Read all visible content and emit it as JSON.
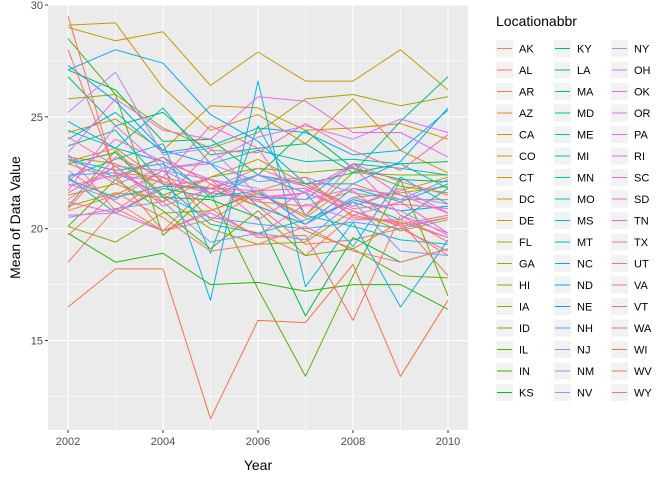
{
  "chart_data": {
    "type": "line",
    "xlabel": "Year",
    "ylabel": "Mean of Data Value",
    "xlim": [
      2002,
      2010
    ],
    "ylim": [
      11,
      30
    ],
    "x_ticks": [
      2002,
      2004,
      2006,
      2008,
      2010
    ],
    "y_ticks": [
      15,
      20,
      25,
      30
    ],
    "grid": true,
    "legend": {
      "title": "Locationabbr",
      "placement": "right",
      "columns": 3
    },
    "x": [
      2002,
      2003,
      2004,
      2005,
      2006,
      2007,
      2008,
      2009,
      2010
    ],
    "series": [
      {
        "name": "AK",
        "color": "#F8766D",
        "values": [
          22.6,
          21.2,
          19.9,
          22.0,
          21.0,
          19.3,
          19.5,
          20.0,
          19.0
        ]
      },
      {
        "name": "AL",
        "color": "#F47B5B",
        "values": [
          18.5,
          20.9,
          19.9,
          20.4,
          19.8,
          18.8,
          20.6,
          20.2,
          20.6
        ]
      },
      {
        "name": "AR",
        "color": "#EE8044",
        "values": [
          20.8,
          21.5,
          22.6,
          20.4,
          21.6,
          20.5,
          22.0,
          21.3,
          21.3
        ]
      },
      {
        "name": "AZ",
        "color": "#E7851E",
        "values": [
          23.0,
          23.6,
          22.1,
          21.6,
          21.3,
          19.9,
          19.1,
          20.3,
          19.6
        ]
      },
      {
        "name": "CA",
        "color": "#E08B00",
        "values": [
          21.5,
          22.0,
          21.2,
          22.3,
          23.1,
          22.0,
          21.0,
          21.7,
          22.3
        ]
      },
      {
        "name": "CO",
        "color": "#D89000",
        "values": [
          24.3,
          24.9,
          23.5,
          25.5,
          25.4,
          24.4,
          24.5,
          24.7,
          24.0
        ]
      },
      {
        "name": "CT",
        "color": "#CF9400",
        "values": [
          29.1,
          29.2,
          26.3,
          24.4,
          25.1,
          23.8,
          25.8,
          23.5,
          22.5
        ]
      },
      {
        "name": "DC",
        "color": "#C49A00",
        "values": [
          29.0,
          28.4,
          28.8,
          26.4,
          27.9,
          26.6,
          26.6,
          28.0,
          26.2
        ]
      },
      {
        "name": "DE",
        "color": "#B99E00",
        "values": [
          23.2,
          22.9,
          22.0,
          21.8,
          21.0,
          20.2,
          21.4,
          21.6,
          21.9
        ]
      },
      {
        "name": "FL",
        "color": "#ADA200",
        "values": [
          21.0,
          21.6,
          21.4,
          20.0,
          19.3,
          19.4,
          20.8,
          19.9,
          20.4
        ]
      },
      {
        "name": "GA",
        "color": "#A0A600",
        "values": [
          25.8,
          26.0,
          24.5,
          23.6,
          24.3,
          25.8,
          26.0,
          25.5,
          25.9
        ]
      },
      {
        "name": "HI",
        "color": "#91AA00",
        "values": [
          20.1,
          19.4,
          20.7,
          20.8,
          21.6,
          20.6,
          22.5,
          22.4,
          22.4
        ]
      },
      {
        "name": "IA",
        "color": "#7FAE00",
        "values": [
          21.0,
          23.5,
          21.5,
          22.3,
          22.7,
          22.5,
          22.7,
          21.9,
          21.6
        ]
      },
      {
        "name": "ID",
        "color": "#6BB100",
        "values": [
          20.1,
          22.2,
          20.8,
          19.1,
          20.8,
          18.8,
          19.1,
          17.9,
          17.8
        ]
      },
      {
        "name": "IL",
        "color": "#51B400",
        "values": [
          28.5,
          26.0,
          19.7,
          21.6,
          17.3,
          13.4,
          17.9,
          22.2,
          17.0
        ]
      },
      {
        "name": "IN",
        "color": "#24B700",
        "values": [
          19.8,
          18.5,
          18.9,
          17.5,
          17.6,
          17.2,
          17.5,
          17.5,
          16.4
        ]
      },
      {
        "name": "KS",
        "color": "#00BA38",
        "values": [
          22.9,
          23.4,
          21.4,
          21.3,
          20.5,
          16.1,
          19.6,
          18.5,
          19.1
        ]
      },
      {
        "name": "KY",
        "color": "#00BC59",
        "values": [
          27.1,
          26.2,
          23.9,
          24.0,
          22.4,
          24.4,
          22.7,
          22.2,
          22.1
        ]
      },
      {
        "name": "LA",
        "color": "#00BE70",
        "values": [
          26.8,
          24.6,
          25.2,
          23.3,
          23.6,
          23.8,
          22.5,
          22.9,
          23.0
        ]
      },
      {
        "name": "MA",
        "color": "#00BF83",
        "values": [
          22.3,
          20.7,
          21.8,
          21.4,
          22.4,
          22.0,
          22.5,
          24.8,
          26.8
        ]
      },
      {
        "name": "MD",
        "color": "#00C094",
        "values": [
          23.7,
          24.4,
          22.0,
          20.2,
          19.8,
          20.4,
          21.2,
          20.4,
          21.8
        ]
      },
      {
        "name": "ME",
        "color": "#00C1A4",
        "values": [
          24.4,
          23.6,
          25.4,
          22.9,
          23.5,
          23.0,
          23.1,
          22.9,
          21.8
        ]
      },
      {
        "name": "MI",
        "color": "#00C0B3",
        "values": [
          23.1,
          22.6,
          22.9,
          21.6,
          21.4,
          21.3,
          22.9,
          22.7,
          22.4
        ]
      },
      {
        "name": "MN",
        "color": "#00BFC0",
        "values": [
          23.1,
          22.3,
          23.2,
          21.4,
          21.7,
          20.2,
          21.8,
          21.2,
          22.0
        ]
      },
      {
        "name": "MO",
        "color": "#00BCCD",
        "values": [
          22.3,
          23.1,
          23.8,
          18.9,
          24.6,
          20.6,
          20.1,
          19.5,
          19.3
        ]
      },
      {
        "name": "MS",
        "color": "#00B8D9",
        "values": [
          22.2,
          21.4,
          21.9,
          21.8,
          22.4,
          21.6,
          19.2,
          22.3,
          21.1
        ]
      },
      {
        "name": "MT",
        "color": "#00B4E4",
        "values": [
          24.8,
          23.6,
          23.0,
          16.8,
          26.6,
          17.4,
          20.3,
          16.5,
          19.5
        ]
      },
      {
        "name": "NC",
        "color": "#00AEEF",
        "values": [
          24.0,
          25.2,
          23.4,
          23.7,
          24.5,
          24.3,
          23.3,
          23.5,
          25.3
        ]
      },
      {
        "name": "ND",
        "color": "#00A8FF",
        "values": [
          27.1,
          28.0,
          27.4,
          25.1,
          23.9,
          22.0,
          22.0,
          23.0,
          25.4
        ]
      },
      {
        "name": "NE",
        "color": "#00A2FF",
        "values": [
          27.3,
          25.7,
          23.5,
          22.9,
          21.0,
          20.2,
          21.3,
          20.8,
          21.0
        ]
      },
      {
        "name": "NH",
        "color": "#529EFF",
        "values": [
          22.4,
          22.5,
          21.5,
          20.5,
          20.2,
          20.0,
          20.3,
          20.0,
          20.5
        ]
      },
      {
        "name": "NJ",
        "color": "#7997FF",
        "values": [
          20.5,
          20.9,
          21.2,
          19.4,
          19.8,
          19.5,
          21.2,
          19.0,
          18.8
        ]
      },
      {
        "name": "NM",
        "color": "#9590FF",
        "values": [
          23.3,
          22.0,
          22.7,
          22.9,
          22.1,
          22.3,
          21.6,
          21.3,
          22.2
        ]
      },
      {
        "name": "NV",
        "color": "#AC88FF",
        "values": [
          22.0,
          21.3,
          22.6,
          22.2,
          21.8,
          20.2,
          21.4,
          20.8,
          19.7
        ]
      },
      {
        "name": "NY",
        "color": "#BF80FF",
        "values": [
          25.2,
          27.0,
          23.3,
          23.6,
          21.5,
          21.3,
          21.8,
          21.5,
          21.1
        ]
      },
      {
        "name": "OH",
        "color": "#CF78FF",
        "values": [
          21.3,
          22.8,
          22.6,
          21.6,
          22.4,
          21.9,
          21.0,
          21.8,
          20.7
        ]
      },
      {
        "name": "OK",
        "color": "#DC71FA",
        "values": [
          21.7,
          24.6,
          22.7,
          23.0,
          24.1,
          24.6,
          24.0,
          24.9,
          24.3
        ]
      },
      {
        "name": "OR",
        "color": "#E76BF3",
        "values": [
          20.6,
          20.7,
          19.9,
          20.7,
          19.7,
          21.1,
          20.4,
          20.4,
          19.6
        ]
      },
      {
        "name": "PA",
        "color": "#F066EA",
        "values": [
          23.4,
          25.8,
          24.4,
          24.0,
          25.9,
          25.7,
          24.3,
          24.3,
          23.2
        ]
      },
      {
        "name": "RI",
        "color": "#F763E0",
        "values": [
          22.1,
          24.0,
          23.0,
          22.2,
          20.4,
          21.7,
          22.9,
          21.5,
          20.7
        ]
      },
      {
        "name": "SC",
        "color": "#FC61D5",
        "values": [
          21.9,
          22.4,
          22.1,
          21.6,
          21.3,
          21.6,
          22.8,
          20.6,
          19.8
        ]
      },
      {
        "name": "SD",
        "color": "#FF61C9",
        "values": [
          21.2,
          20.7,
          21.9,
          22.2,
          21.4,
          21.6,
          20.8,
          20.1,
          20.5
        ]
      },
      {
        "name": "TN",
        "color": "#FF62BC",
        "values": [
          21.6,
          22.8,
          21.0,
          21.8,
          21.7,
          21.8,
          20.6,
          21.2,
          19.8
        ]
      },
      {
        "name": "TX",
        "color": "#FF65AE",
        "values": [
          20.9,
          23.2,
          22.3,
          24.6,
          23.6,
          20.6,
          22.9,
          22.1,
          21.5
        ]
      },
      {
        "name": "UT",
        "color": "#FF689F",
        "values": [
          24.1,
          22.8,
          21.2,
          23.5,
          23.4,
          24.7,
          23.5,
          22.6,
          24.2
        ]
      },
      {
        "name": "VA",
        "color": "#FF6C90",
        "values": [
          23.3,
          20.8,
          22.3,
          21.8,
          22.7,
          21.9,
          20.9,
          21.1,
          20.9
        ]
      },
      {
        "name": "VT",
        "color": "#FF6C7F",
        "values": [
          22.9,
          22.2,
          23.2,
          22.0,
          21.2,
          21.0,
          21.7,
          20.1,
          18.8
        ]
      },
      {
        "name": "WA",
        "color": "#FD6F6B",
        "values": [
          28.0,
          22.5,
          22.3,
          20.9,
          19.6,
          19.7,
          15.9,
          20.6,
          19.4
        ]
      },
      {
        "name": "WI",
        "color": "#FB7157",
        "values": [
          29.5,
          22.4,
          19.9,
          20.8,
          21.7,
          22.3,
          20.5,
          20.3,
          17.9
        ]
      },
      {
        "name": "WV",
        "color": "#F87241",
        "values": [
          16.5,
          18.2,
          18.2,
          11.5,
          15.9,
          15.8,
          18.4,
          13.4,
          16.8
        ]
      },
      {
        "name": "WY",
        "color": "#F8766D",
        "values": [
          19.7,
          21.6,
          20.5,
          19.0,
          19.3,
          20.1,
          19.0,
          18.5,
          19.1
        ]
      }
    ]
  }
}
